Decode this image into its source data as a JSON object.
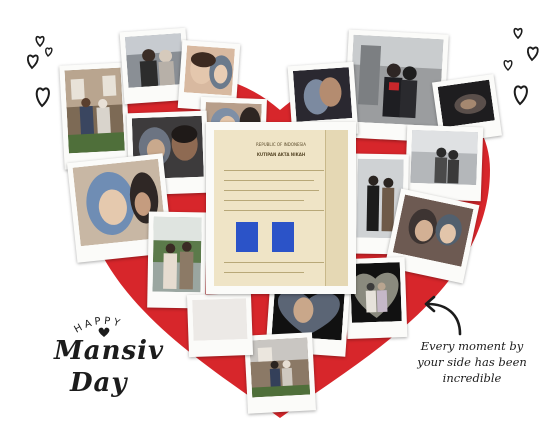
{
  "scene": {
    "description_free": true,
    "colors": {
      "heart": "#d7262b",
      "frame": "#fbfbf9",
      "ink": "#1c1c1c",
      "paper": "#efe4c6"
    }
  },
  "greeting": {
    "happy": "HAPPY",
    "line1": "Mansiv",
    "line2": "Day"
  },
  "caption": {
    "line1": "Every moment by",
    "line2": "your side has been",
    "line3": "incredible"
  },
  "document": {
    "header": "REPUBLIC OF INDONESIA",
    "subheader": "KUTIPAN AKTA NIKAH"
  },
  "icons": {
    "hearts": "heart-doodle-icon",
    "arrow": "curved-arrow-icon",
    "small_heart": "small-heart-icon"
  }
}
